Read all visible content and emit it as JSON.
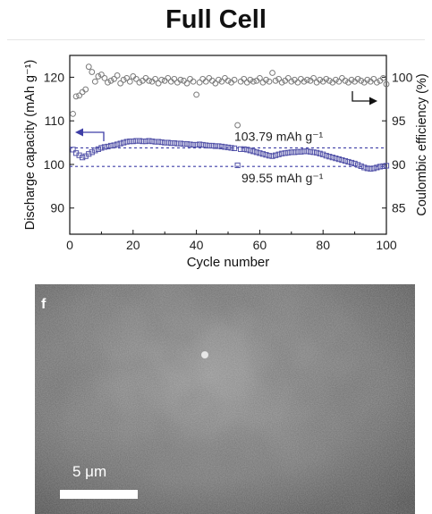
{
  "figure_title": "Full Cell",
  "sem_panel": {
    "label": "f",
    "scale_bar_label": "5 μm"
  },
  "chart_data": {
    "type": "scatter",
    "title": "",
    "xlabel": "Cycle number",
    "ylabel_left": "Discharge capacity (mAh g⁻¹)",
    "ylabel_right": "Coulombic efficiency (%)",
    "xlim": [
      0,
      100
    ],
    "ylim_left": [
      84,
      125
    ],
    "ylim_right": [
      82,
      102.5
    ],
    "xticks": [
      0,
      20,
      40,
      60,
      80,
      100
    ],
    "yticks_left": [
      90,
      100,
      110,
      120
    ],
    "yticks_right": [
      85,
      90,
      95,
      100
    ],
    "grid": false,
    "legend": "none",
    "reference_lines": [
      {
        "axis": "left",
        "y": 103.79,
        "label": "103.79 mAh g⁻¹",
        "style": "dashed",
        "color": "#3e3ea6"
      },
      {
        "axis": "left",
        "y": 99.55,
        "label": "99.55 mAh g⁻¹",
        "style": "dashed",
        "color": "#3e3ea6"
      }
    ],
    "axis_indicators": [
      {
        "points_to": "left",
        "color": "#3e3ea6"
      },
      {
        "points_to": "right",
        "color": "#111111"
      }
    ],
    "series": [
      {
        "axis": "left",
        "marker": "square-open",
        "color": "#5252a8",
        "x": [
          1,
          2,
          3,
          4,
          5,
          6,
          7,
          8,
          9,
          10,
          11,
          12,
          13,
          14,
          15,
          16,
          17,
          18,
          19,
          20,
          21,
          22,
          23,
          24,
          25,
          26,
          27,
          28,
          29,
          30,
          31,
          32,
          33,
          34,
          35,
          36,
          37,
          38,
          39,
          40,
          41,
          42,
          43,
          44,
          45,
          46,
          47,
          48,
          49,
          50,
          51,
          52,
          53,
          54,
          55,
          56,
          57,
          58,
          59,
          60,
          61,
          62,
          63,
          64,
          65,
          66,
          67,
          68,
          69,
          70,
          71,
          72,
          73,
          74,
          75,
          76,
          77,
          78,
          79,
          80,
          81,
          82,
          83,
          84,
          85,
          86,
          87,
          88,
          89,
          90,
          91,
          92,
          93,
          94,
          95,
          96,
          97,
          98,
          99,
          100
        ],
        "y": [
          103.4,
          102.6,
          102.1,
          101.6,
          101.9,
          102.4,
          102.8,
          103.2,
          103.5,
          103.8,
          104.0,
          104.1,
          104.3,
          104.4,
          104.6,
          104.8,
          105.0,
          105.2,
          105.3,
          105.3,
          105.4,
          105.4,
          105.3,
          105.3,
          105.4,
          105.3,
          105.2,
          105.2,
          105.1,
          105.0,
          105.0,
          104.9,
          104.9,
          104.8,
          104.8,
          104.7,
          104.7,
          104.6,
          104.5,
          104.5,
          104.6,
          104.5,
          104.4,
          104.3,
          104.3,
          104.2,
          104.2,
          104.1,
          104.0,
          103.9,
          103.8,
          103.7,
          99.8,
          103.5,
          103.5,
          103.4,
          103.2,
          103.0,
          102.8,
          102.6,
          102.4,
          102.2,
          102.0,
          101.9,
          102.1,
          102.3,
          102.5,
          102.6,
          102.7,
          102.8,
          102.8,
          102.9,
          102.9,
          103.0,
          103.0,
          102.9,
          102.8,
          102.7,
          102.5,
          102.3,
          102.0,
          101.8,
          101.6,
          101.4,
          101.2,
          101.0,
          100.8,
          100.6,
          100.4,
          100.2,
          99.9,
          99.6,
          99.3,
          99.1,
          99.0,
          99.1,
          99.3,
          99.5,
          99.6,
          99.7
        ]
      },
      {
        "axis": "right",
        "marker": "circle-open",
        "color": "#7a7a7a",
        "x": [
          1,
          2,
          3,
          4,
          5,
          6,
          7,
          8,
          9,
          10,
          11,
          12,
          13,
          14,
          15,
          16,
          17,
          18,
          19,
          20,
          21,
          22,
          23,
          24,
          25,
          26,
          27,
          28,
          29,
          30,
          31,
          32,
          33,
          34,
          35,
          36,
          37,
          38,
          39,
          40,
          41,
          42,
          43,
          44,
          45,
          46,
          47,
          48,
          49,
          50,
          51,
          52,
          53,
          54,
          55,
          56,
          57,
          58,
          59,
          60,
          61,
          62,
          63,
          64,
          65,
          66,
          67,
          68,
          69,
          70,
          71,
          72,
          73,
          74,
          75,
          76,
          77,
          78,
          79,
          80,
          81,
          82,
          83,
          84,
          85,
          86,
          87,
          88,
          89,
          90,
          91,
          92,
          93,
          94,
          95,
          96,
          97,
          98,
          99,
          100
        ],
        "y": [
          95.8,
          97.8,
          97.9,
          98.3,
          98.6,
          101.2,
          100.6,
          99.5,
          100.1,
          100.3,
          99.9,
          99.4,
          99.6,
          99.8,
          100.2,
          99.3,
          99.7,
          99.9,
          99.5,
          100.1,
          99.8,
          99.4,
          99.6,
          99.9,
          99.6,
          99.5,
          99.8,
          99.3,
          99.7,
          99.6,
          99.9,
          99.5,
          99.8,
          99.4,
          99.7,
          99.6,
          99.3,
          99.8,
          99.5,
          98.0,
          99.4,
          99.8,
          99.5,
          99.9,
          99.6,
          99.3,
          99.7,
          99.5,
          99.9,
          99.6,
          99.4,
          99.7,
          94.5,
          99.5,
          99.8,
          99.4,
          99.7,
          99.5,
          99.6,
          99.9,
          99.4,
          99.7,
          99.5,
          100.5,
          99.6,
          99.8,
          99.4,
          99.6,
          99.9,
          99.5,
          99.7,
          99.4,
          99.8,
          99.5,
          99.7,
          99.6,
          99.9,
          99.4,
          99.7,
          99.5,
          99.8,
          99.6,
          99.4,
          99.7,
          99.5,
          99.9,
          99.6,
          99.4,
          99.7,
          99.5,
          99.8,
          99.6,
          99.4,
          99.7,
          99.5,
          99.8,
          99.4,
          99.6,
          99.9,
          99.2
        ]
      }
    ]
  }
}
